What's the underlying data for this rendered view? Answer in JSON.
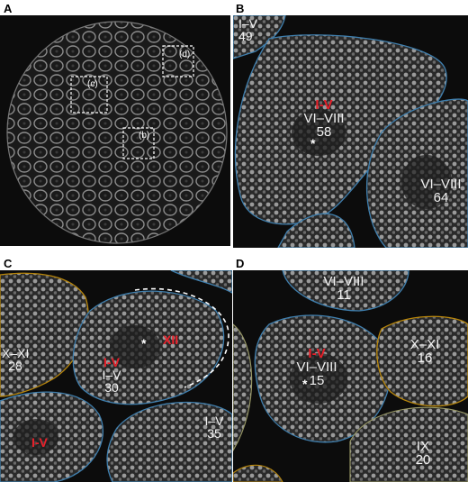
{
  "panels": {
    "a": {
      "letter": "A",
      "insets": [
        "(d)",
        "(c)",
        "(b)"
      ]
    },
    "b": {
      "letter": "B",
      "labels": {
        "topleft": {
          "stage": "I–V",
          "count": "49"
        },
        "center": {
          "red": "I-V",
          "stage": "VI–VIII",
          "count": "58"
        },
        "right": {
          "stage": "VI–VIII",
          "count": "64"
        }
      }
    },
    "c": {
      "letter": "C",
      "labels": {
        "left": {
          "stage": "X–XI",
          "count": "28"
        },
        "center": {
          "red": "I-V",
          "stage": "I–V",
          "count": "30"
        },
        "xii": "XII",
        "bottomleft": "I-V",
        "bottomright": {
          "stage": "I–V",
          "count": "35"
        }
      }
    },
    "d": {
      "letter": "D",
      "labels": {
        "top": {
          "stage": "VI–VIII",
          "count": "11"
        },
        "center": {
          "red": "I-V",
          "stage": "VI–VIII",
          "count": "15"
        },
        "right": {
          "stage": "X–XI",
          "count": "16"
        },
        "bottom": {
          "stage": "IX",
          "count": "20"
        }
      }
    },
    "asterisk": "*"
  },
  "colors": {
    "background": "#0c0c0c",
    "tubule_blue": "#3f7fae",
    "tubule_orange": "#b8860b",
    "red_label": "#e8202a",
    "dashed": "#ffffff"
  }
}
